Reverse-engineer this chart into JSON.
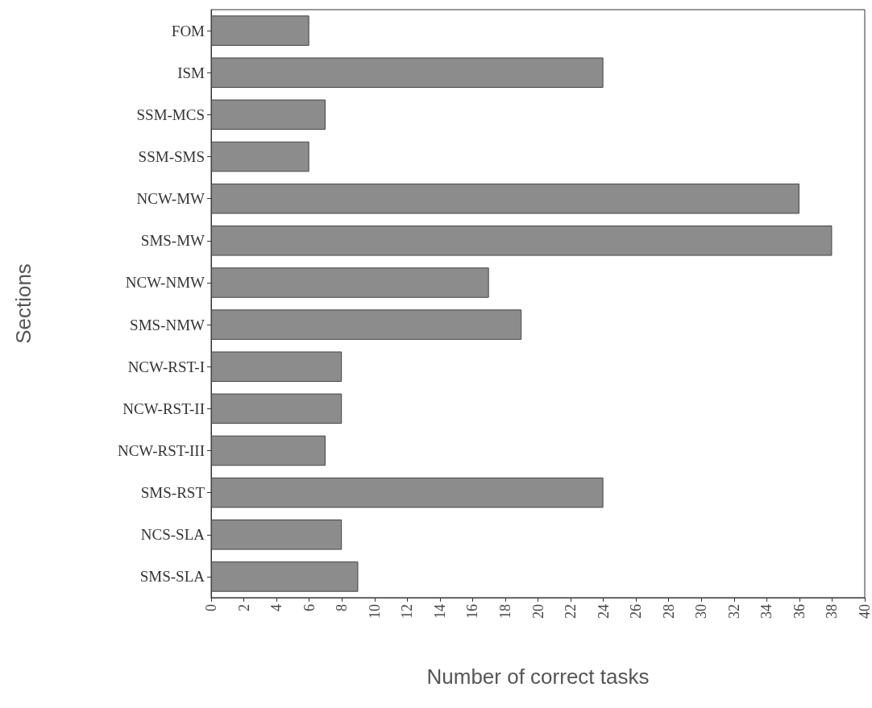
{
  "chart_data": {
    "type": "bar",
    "orientation": "horizontal",
    "xlabel": "Number of correct tasks",
    "ylabel": "Sections",
    "categories": [
      "FOM",
      "ISM",
      "SSM-MCS",
      "SSM-SMS",
      "NCW-MW",
      "SMS-MW",
      "NCW-NMW",
      "SMS-NMW",
      "NCW-RST-I",
      "NCW-RST-II",
      "NCW-RST-III",
      "SMS-RST",
      "NCS-SLA",
      "SMS-SLA"
    ],
    "values": [
      6,
      24,
      7,
      6,
      36,
      38,
      17,
      19,
      8,
      8,
      7,
      24,
      8,
      9
    ],
    "color": "#8c8c8c",
    "xlim": [
      0,
      40
    ],
    "xticks": [
      0,
      2,
      4,
      6,
      8,
      10,
      12,
      14,
      16,
      18,
      20,
      22,
      24,
      26,
      28,
      30,
      32,
      34,
      36,
      38,
      40
    ],
    "grid": false
  }
}
